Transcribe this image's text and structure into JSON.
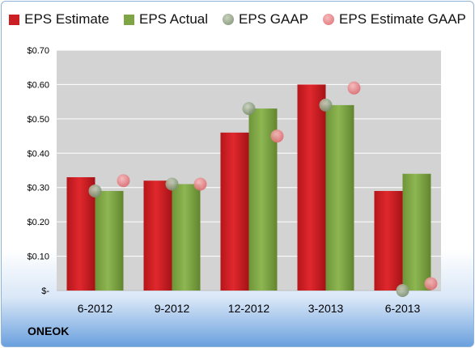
{
  "company": "ONEOK",
  "colors": {
    "estimate": "#cc1f24",
    "actual": "#7fa445",
    "gaap": "#8fa084",
    "estimate_gaap": "#e9878b",
    "plot_bg": "#d3d3d3"
  },
  "legend": [
    {
      "label": "EPS Estimate",
      "shape": "square",
      "color": "#cc1f24"
    },
    {
      "label": "EPS Actual",
      "shape": "square",
      "color": "#7fa445"
    },
    {
      "label": "EPS GAAP",
      "shape": "circle",
      "color": "#8fa084"
    },
    {
      "label": "EPS Estimate GAAP",
      "shape": "circle",
      "color": "#e9878b"
    }
  ],
  "chart_data": {
    "type": "bar",
    "categories": [
      "6-2012",
      "9-2012",
      "12-2012",
      "3-2013",
      "6-2013"
    ],
    "series": [
      {
        "name": "EPS Estimate",
        "kind": "bar",
        "values": [
          0.33,
          0.32,
          0.46,
          0.6,
          0.29
        ]
      },
      {
        "name": "EPS Actual",
        "kind": "bar",
        "values": [
          0.29,
          0.31,
          0.53,
          0.54,
          0.34
        ]
      },
      {
        "name": "EPS GAAP",
        "kind": "marker",
        "values": [
          0.29,
          0.31,
          0.53,
          0.54,
          0.0
        ]
      },
      {
        "name": "EPS Estimate GAAP",
        "kind": "marker",
        "values": [
          0.32,
          0.31,
          0.45,
          0.59,
          0.02
        ]
      }
    ],
    "ylim": [
      0,
      0.7
    ],
    "yticks": [
      0,
      0.1,
      0.2,
      0.3,
      0.4,
      0.5,
      0.6,
      0.7
    ],
    "ytick_labels": [
      "$-",
      "$0.10",
      "$0.20",
      "$0.30",
      "$0.40",
      "$0.50",
      "$0.60",
      "$0.70"
    ],
    "grid": true,
    "legend_position": "top",
    "title": "",
    "xlabel": "",
    "ylabel": ""
  }
}
